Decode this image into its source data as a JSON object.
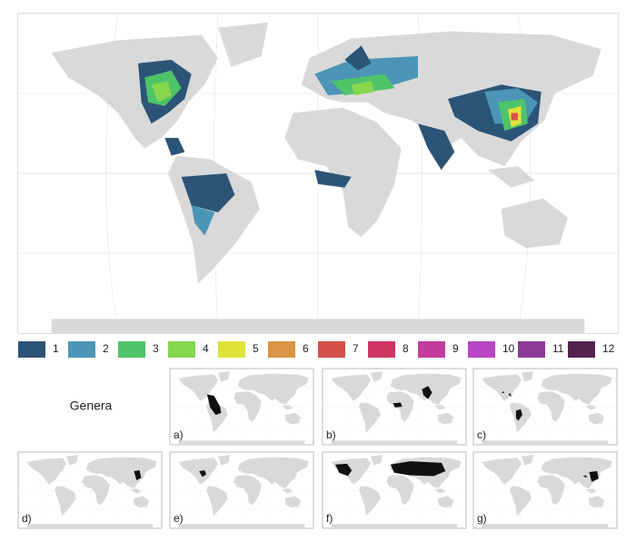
{
  "legend": {
    "items": [
      {
        "value": 1,
        "color": "#2b5477"
      },
      {
        "value": 2,
        "color": "#4b95b7"
      },
      {
        "value": 3,
        "color": "#4fc36a"
      },
      {
        "value": 4,
        "color": "#86d64e"
      },
      {
        "value": 5,
        "color": "#dfe33b"
      },
      {
        "value": 6,
        "color": "#d99446"
      },
      {
        "value": 7,
        "color": "#d6504a"
      },
      {
        "value": 8,
        "color": "#cf3463"
      },
      {
        "value": 9,
        "color": "#c43c9c"
      },
      {
        "value": 10,
        "color": "#b946c4"
      },
      {
        "value": 11,
        "color": "#8c3b96"
      },
      {
        "value": 12,
        "color": "#55224f"
      }
    ]
  },
  "panels_title": "Genera",
  "panels": [
    {
      "label": "a)"
    },
    {
      "label": "b)"
    },
    {
      "label": "c)"
    },
    {
      "label": "d)"
    },
    {
      "label": "e)"
    },
    {
      "label": "f)"
    },
    {
      "label": "g)"
    }
  ]
}
